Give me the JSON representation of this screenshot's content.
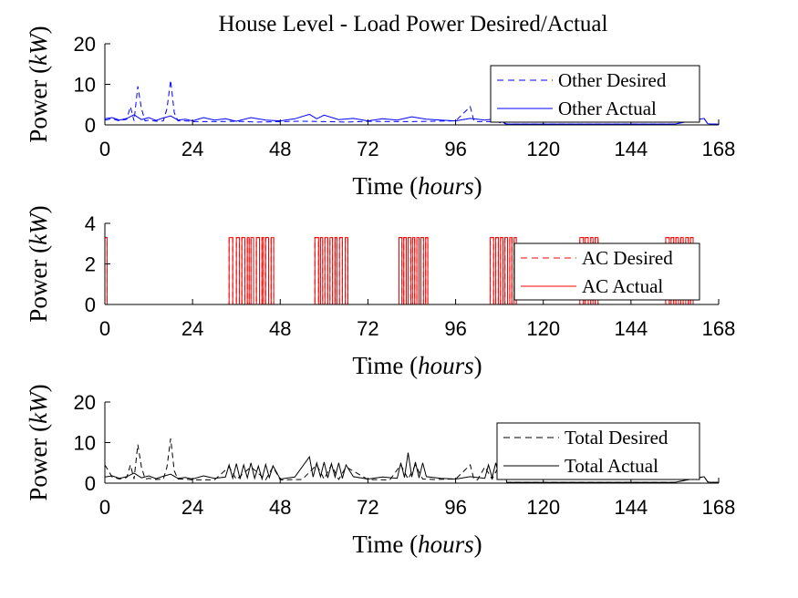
{
  "chart_data": [
    {
      "type": "line",
      "title": "House Level - Load Power Desired/Actual",
      "xlabel": "Time (hours)",
      "ylabel": "Power (kW)",
      "xlim": [
        0,
        168
      ],
      "ylim": [
        0,
        20
      ],
      "xticks": [
        0,
        24,
        48,
        72,
        96,
        120,
        144,
        168
      ],
      "yticks": [
        0,
        10,
        20
      ],
      "legend_position": "top-right",
      "series": [
        {
          "name": "Other Desired",
          "color": "#0000ff",
          "style": "dashed",
          "x": [
            0,
            2,
            4,
            6,
            7,
            8,
            9,
            10,
            11,
            12,
            14,
            16,
            17,
            18,
            19,
            20,
            22,
            24,
            30,
            36,
            42,
            48,
            54,
            60,
            66,
            72,
            78,
            84,
            90,
            96,
            100,
            101,
            102,
            104,
            107,
            110,
            120,
            132,
            144,
            156,
            164,
            165,
            166,
            168
          ],
          "y": [
            1.2,
            1.5,
            1.0,
            1.4,
            4.5,
            1.0,
            9.5,
            4.0,
            1.0,
            1.2,
            0.9,
            1.0,
            4.0,
            11.0,
            3.0,
            1.0,
            1.0,
            0.8,
            0.8,
            0.9,
            0.7,
            0.8,
            0.9,
            0.8,
            0.7,
            0.9,
            0.8,
            0.8,
            0.9,
            1.0,
            4.5,
            1.0,
            0.8,
            0.8,
            0.8,
            0.2,
            0.2,
            0.2,
            0.2,
            0.2,
            1.6,
            0.3,
            0.2,
            0.2
          ]
        },
        {
          "name": "Other Actual",
          "color": "#0000ff",
          "style": "solid",
          "x": [
            0,
            2,
            4,
            6,
            8,
            10,
            12,
            14,
            16,
            18,
            20,
            22,
            24,
            27,
            30,
            33,
            36,
            40,
            44,
            48,
            52,
            56,
            58,
            60,
            64,
            68,
            72,
            76,
            80,
            84,
            88,
            92,
            96,
            100,
            104,
            107,
            110,
            120,
            132,
            144,
            156,
            164,
            165,
            166,
            168
          ],
          "y": [
            1.5,
            1.8,
            1.2,
            1.6,
            2.5,
            1.3,
            1.8,
            1.1,
            1.7,
            2.2,
            1.2,
            1.4,
            1.0,
            1.8,
            1.2,
            1.5,
            0.9,
            1.8,
            1.2,
            1.0,
            1.5,
            2.6,
            1.5,
            2.4,
            1.3,
            1.6,
            1.0,
            1.5,
            1.2,
            2.0,
            1.4,
            1.2,
            1.0,
            1.6,
            1.2,
            1.5,
            0.2,
            0.2,
            0.2,
            0.2,
            0.2,
            1.6,
            0.3,
            0.2,
            0.2
          ]
        }
      ]
    },
    {
      "type": "line",
      "title": "",
      "xlabel": "Time (hours)",
      "ylabel": "Power (kW)",
      "xlim": [
        0,
        168
      ],
      "ylim": [
        0,
        4
      ],
      "xticks": [
        0,
        24,
        48,
        72,
        96,
        120,
        144,
        168
      ],
      "yticks": [
        0,
        2,
        4
      ],
      "legend_position": "top-right",
      "on_level": 3.3,
      "series": [
        {
          "name": "AC Desired",
          "color": "#ff0000",
          "style": "dashed",
          "on_intervals": [
            [
              0,
              0.6
            ],
            [
              34,
              35
            ],
            [
              36,
              36.8
            ],
            [
              37.5,
              38.3
            ],
            [
              39,
              39.5
            ],
            [
              40,
              40.7
            ],
            [
              41.5,
              42.3
            ],
            [
              43,
              43.4
            ],
            [
              44,
              44.8
            ],
            [
              45.5,
              46.2
            ],
            [
              57.5,
              58.5
            ],
            [
              59,
              59.6
            ],
            [
              60.2,
              61
            ],
            [
              61.6,
              62.3
            ],
            [
              63,
              63.5
            ],
            [
              64.2,
              65
            ],
            [
              65.8,
              66.5
            ],
            [
              80.5,
              81.3
            ],
            [
              81.8,
              82.5
            ],
            [
              83,
              83.7
            ],
            [
              84.2,
              84.8
            ],
            [
              85.4,
              86
            ],
            [
              86.5,
              87.2
            ],
            [
              87.8,
              88.4
            ],
            [
              105.5,
              106.4
            ],
            [
              107,
              107.7
            ],
            [
              108.3,
              109
            ],
            [
              109.5,
              110.2
            ],
            [
              110.8,
              111.4
            ],
            [
              112,
              112.6
            ],
            [
              130,
              131
            ],
            [
              131.5,
              132.3
            ],
            [
              133,
              133.6
            ],
            [
              134.2,
              135
            ],
            [
              153.5,
              154.5
            ],
            [
              155,
              155.7
            ],
            [
              156.3,
              157
            ],
            [
              157.6,
              158.3
            ],
            [
              159,
              159.7
            ],
            [
              160.3,
              161
            ]
          ]
        },
        {
          "name": "AC Actual",
          "color": "#ff0000",
          "style": "solid",
          "on_intervals": [
            [
              0,
              0.6
            ],
            [
              34,
              35
            ],
            [
              36,
              36.8
            ],
            [
              37.5,
              38.3
            ],
            [
              39,
              39.5
            ],
            [
              40,
              40.7
            ],
            [
              41.5,
              42.3
            ],
            [
              43,
              43.4
            ],
            [
              44,
              44.8
            ],
            [
              45.5,
              46.2
            ],
            [
              57.5,
              58.5
            ],
            [
              59,
              59.6
            ],
            [
              60.2,
              61
            ],
            [
              61.6,
              62.3
            ],
            [
              63,
              63.5
            ],
            [
              64.2,
              65
            ],
            [
              65.8,
              66.5
            ],
            [
              80.5,
              81.3
            ],
            [
              81.8,
              82.5
            ],
            [
              83,
              83.7
            ],
            [
              84.2,
              84.8
            ],
            [
              85.4,
              86
            ],
            [
              86.5,
              87.2
            ],
            [
              87.8,
              88.4
            ],
            [
              105.5,
              106.4
            ],
            [
              107,
              107.7
            ],
            [
              108.3,
              109
            ],
            [
              109.5,
              110.2
            ],
            [
              110.8,
              111.4
            ],
            [
              112,
              112.6
            ],
            [
              130,
              131
            ],
            [
              131.5,
              132.3
            ],
            [
              133,
              133.6
            ],
            [
              134.2,
              135
            ],
            [
              153.5,
              154.5
            ],
            [
              155,
              155.7
            ],
            [
              156.3,
              157
            ],
            [
              157.6,
              158.3
            ],
            [
              159,
              159.7
            ],
            [
              160.3,
              161
            ]
          ]
        }
      ]
    },
    {
      "type": "line",
      "title": "",
      "xlabel": "Time (hours)",
      "ylabel": "Power (kW)",
      "xlim": [
        0,
        168
      ],
      "ylim": [
        0,
        20
      ],
      "xticks": [
        0,
        24,
        48,
        72,
        96,
        120,
        144,
        168
      ],
      "yticks": [
        0,
        10,
        20
      ],
      "legend_position": "top-right",
      "series": [
        {
          "name": "Total Desired",
          "color": "#000000",
          "style": "dashed",
          "x": [
            0,
            2,
            4,
            6,
            7,
            8,
            9,
            10,
            11,
            12,
            14,
            16,
            17,
            18,
            19,
            20,
            22,
            24,
            30,
            34,
            36,
            40,
            44,
            46,
            48,
            54,
            58,
            60,
            62,
            64,
            66,
            72,
            78,
            81,
            83,
            85,
            87,
            90,
            96,
            100,
            101,
            102,
            104,
            106,
            108,
            110,
            120,
            132,
            144,
            156,
            164,
            165,
            166,
            168
          ],
          "y": [
            4.5,
            1.5,
            1.0,
            1.4,
            4.5,
            1.0,
            9.5,
            4.0,
            1.0,
            1.2,
            0.9,
            1.0,
            4.0,
            11.0,
            3.0,
            1.0,
            1.0,
            0.8,
            0.8,
            4.0,
            0.9,
            4.0,
            0.8,
            4.0,
            0.8,
            0.9,
            4.5,
            1.0,
            4.5,
            0.9,
            4.0,
            0.9,
            0.8,
            4.5,
            1.0,
            4.5,
            1.0,
            0.9,
            1.0,
            4.5,
            1.0,
            0.8,
            4.0,
            1.0,
            4.5,
            0.2,
            0.2,
            0.2,
            0.2,
            0.2,
            1.6,
            0.3,
            0.2,
            0.2
          ]
        },
        {
          "name": "Total Actual",
          "color": "#000000",
          "style": "solid",
          "x": [
            0,
            2,
            4,
            6,
            8,
            10,
            12,
            14,
            16,
            18,
            20,
            22,
            24,
            27,
            30,
            33,
            34,
            35,
            36,
            37,
            38,
            39,
            40,
            41,
            42,
            43,
            44,
            45,
            46,
            48,
            52,
            56,
            57,
            58,
            59,
            60,
            61,
            62,
            63,
            64,
            65,
            66,
            68,
            72,
            76,
            80,
            81,
            82,
            83,
            84,
            85,
            86,
            87,
            88,
            92,
            96,
            100,
            104,
            105,
            106,
            107,
            108,
            109,
            110,
            120,
            132,
            144,
            156,
            164,
            165,
            166,
            168
          ],
          "y": [
            1.5,
            1.8,
            1.2,
            1.6,
            2.5,
            1.3,
            1.8,
            1.1,
            1.7,
            2.2,
            1.2,
            1.4,
            1.0,
            1.8,
            1.2,
            1.5,
            4.5,
            1.2,
            4.8,
            1.0,
            4.5,
            1.3,
            5.0,
            1.2,
            4.2,
            1.0,
            4.6,
            1.4,
            4.3,
            1.0,
            1.5,
            6.5,
            1.5,
            5.0,
            1.6,
            5.2,
            1.3,
            4.8,
            1.5,
            5.0,
            1.2,
            4.5,
            1.6,
            1.0,
            1.5,
            1.2,
            5.0,
            1.4,
            7.5,
            1.5,
            5.2,
            1.3,
            5.0,
            1.6,
            1.2,
            1.0,
            1.6,
            1.2,
            4.5,
            1.4,
            5.0,
            1.3,
            4.8,
            0.2,
            0.2,
            0.2,
            0.2,
            0.2,
            1.6,
            0.3,
            0.2,
            0.2
          ]
        }
      ]
    }
  ]
}
